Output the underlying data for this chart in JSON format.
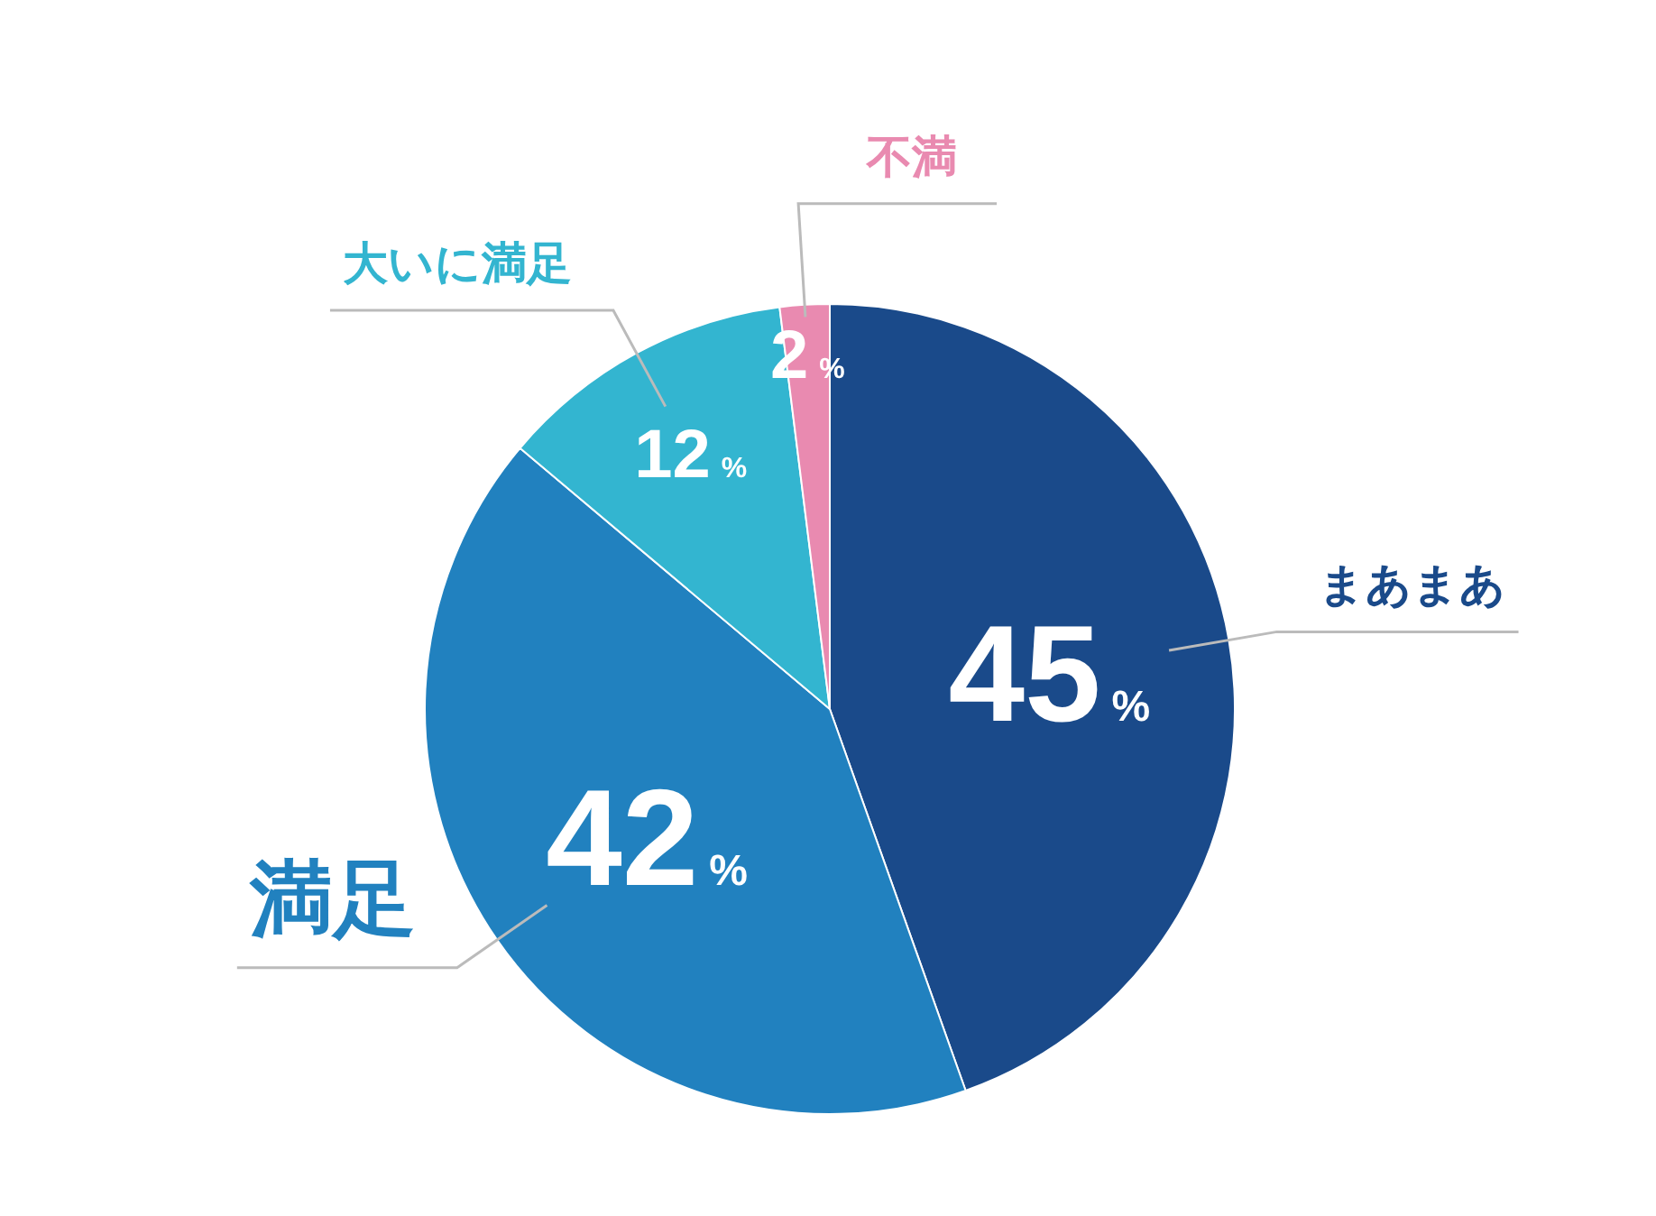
{
  "chart_data": {
    "type": "pie",
    "categories": [
      "まあまあ",
      "満足",
      "大いに満足",
      "不満"
    ],
    "values": [
      45,
      42,
      12,
      2
    ],
    "colors": [
      "#1a4a8a",
      "#2181bf",
      "#33b5d0",
      "#e98ab0"
    ],
    "value_labels": [
      "45%",
      "42%",
      "12%",
      "2%"
    ],
    "legend": false
  }
}
